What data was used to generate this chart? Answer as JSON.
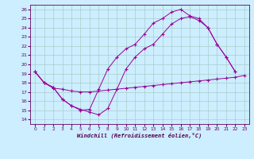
{
  "xlabel": "Windchill (Refroidissement éolien,°C)",
  "background_color": "#cceeff",
  "grid_color": "#aacccc",
  "line_color": "#990099",
  "xlim": [
    -0.5,
    23.5
  ],
  "ylim": [
    13.5,
    26.5
  ],
  "xticks": [
    0,
    1,
    2,
    3,
    4,
    5,
    6,
    7,
    8,
    9,
    10,
    11,
    12,
    13,
    14,
    15,
    16,
    17,
    18,
    19,
    20,
    21,
    22,
    23
  ],
  "yticks": [
    14,
    15,
    16,
    17,
    18,
    19,
    20,
    21,
    22,
    23,
    24,
    25,
    26
  ],
  "line1_x": [
    0,
    1,
    2,
    3,
    4,
    5,
    6,
    7,
    8,
    9,
    10,
    11,
    12,
    13,
    14,
    15,
    16,
    17,
    18,
    19,
    20,
    21,
    22,
    23
  ],
  "line1_y": [
    19.2,
    18.0,
    17.4,
    17.3,
    17.1,
    17.0,
    17.0,
    17.1,
    17.2,
    17.3,
    17.4,
    17.5,
    17.6,
    17.7,
    17.8,
    17.9,
    18.0,
    18.1,
    18.2,
    18.3,
    18.4,
    18.5,
    18.6,
    18.8
  ],
  "line2_x": [
    0,
    1,
    2,
    3,
    4,
    5,
    6,
    7,
    8,
    9,
    10,
    11,
    12,
    13,
    14,
    15,
    16,
    17,
    18,
    19,
    20,
    21,
    22
  ],
  "line2_y": [
    19.2,
    18.0,
    17.5,
    16.2,
    15.5,
    15.1,
    14.8,
    14.5,
    15.2,
    17.3,
    19.5,
    20.8,
    21.7,
    22.2,
    23.3,
    24.4,
    25.0,
    25.2,
    24.8,
    24.0,
    22.2,
    20.8,
    19.2
  ],
  "line3_x": [
    0,
    1,
    2,
    3,
    4,
    5,
    6,
    7,
    8,
    9,
    10,
    11,
    12,
    13,
    14,
    15,
    16,
    17,
    18,
    19,
    20,
    21,
    22
  ],
  "line3_y": [
    19.2,
    18.0,
    17.5,
    16.2,
    15.5,
    15.0,
    15.1,
    17.3,
    19.5,
    20.8,
    21.7,
    22.2,
    23.3,
    24.5,
    25.0,
    25.7,
    26.0,
    25.3,
    25.0,
    24.0,
    22.2,
    20.8,
    19.2
  ]
}
